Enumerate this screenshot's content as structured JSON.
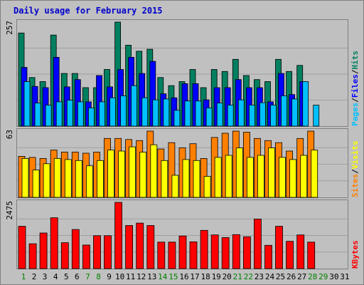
{
  "chart_data": {
    "type": "bar",
    "title": "Daily usage for February 2015",
    "colors": {
      "title": "#0000cc",
      "background": "#c0c0c0",
      "frame": "#808080",
      "grid": "#a0a0a0",
      "pages": "#00c0ff",
      "files": "#0000ff",
      "hits": "#008060",
      "sites": "#ff8000",
      "visits": "#ffff00",
      "kbytes": "#ff0000",
      "weekday_label": "#000000",
      "weekend_label": "#008000"
    },
    "x": [
      "1",
      "2",
      "3",
      "4",
      "5",
      "6",
      "7",
      "8",
      "9",
      "10",
      "11",
      "12",
      "13",
      "14",
      "15",
      "16",
      "17",
      "18",
      "19",
      "20",
      "21",
      "22",
      "23",
      "24",
      "25",
      "26",
      "27",
      "28",
      "29",
      "30",
      "31"
    ],
    "weekend_days": [
      "1",
      "7",
      "8",
      "14",
      "15",
      "21",
      "22",
      "28",
      "29"
    ],
    "panels": [
      {
        "id": "usage",
        "ymax_label": "257",
        "ylim": [
          0,
          257
        ],
        "legend": [
          "Pages",
          "Files",
          "Hits"
        ],
        "series": [
          {
            "name": "Hits",
            "color": "#008060",
            "values": [
              230,
              120,
              110,
              225,
              130,
              130,
              95,
              95,
              140,
              257,
              200,
              185,
              190,
              120,
              100,
              110,
              140,
              95,
              140,
              135,
              165,
              125,
              115,
              110,
              165,
              135,
              150,
              null,
              null,
              null,
              null
            ]
          },
          {
            "name": "Files",
            "color": "#0000ff",
            "values": [
              145,
              98,
              95,
              170,
              97,
              115,
              60,
              125,
              97,
              140,
              170,
              130,
              160,
              80,
              70,
              105,
              105,
              65,
              95,
              95,
              115,
              95,
              95,
              60,
              130,
              78,
              110,
              null,
              null,
              null,
              null
            ]
          },
          {
            "name": "Pages",
            "color": "#00c0ff",
            "values": [
              110,
              57,
              52,
              60,
              64,
              60,
              45,
              60,
              70,
              75,
              100,
              70,
              65,
              67,
              39,
              62,
              62,
              45,
              57,
              52,
              65,
              52,
              58,
              52,
              75,
              67,
              110,
              52,
              null,
              null,
              null
            ]
          }
        ]
      },
      {
        "id": "visitors",
        "ymax_label": "63",
        "ylim": [
          0,
          63
        ],
        "legend": [
          "Sites",
          "Visits"
        ],
        "series": [
          {
            "name": "Sites",
            "color": "#ff8000",
            "values": [
              39,
              38,
              37,
              45,
              43,
              43,
              42,
              43,
              56,
              56,
              55,
              54,
              63,
              46,
              52,
              47,
              51,
              37,
              57,
              61,
              63,
              62,
              56,
              54,
              52,
              44,
              56,
              63,
              null,
              null,
              null
            ]
          },
          {
            "name": "Visits",
            "color": "#ffff00",
            "values": [
              37,
              26,
              32,
              37,
              36,
              35,
              30,
              35,
              45,
              44,
              48,
              43,
              50,
              35,
              21,
              36,
              35,
              20,
              38,
              40,
              47,
              38,
              40,
              47,
              38,
              36,
              40,
              45,
              null,
              null,
              null
            ]
          }
        ]
      },
      {
        "id": "kbytes",
        "ymax_label": "2475",
        "ylim": [
          0,
          2475
        ],
        "legend": [
          "KBytes"
        ],
        "series": [
          {
            "name": "KBytes",
            "color": "#ff0000",
            "values": [
              1580,
              930,
              1330,
              1900,
              970,
              1460,
              880,
              1230,
              1230,
              2475,
              1610,
              1700,
              1610,
              990,
              990,
              1220,
              1000,
              1430,
              1260,
              1160,
              1270,
              1190,
              1850,
              870,
              1580,
              1020,
              1260,
              990,
              null,
              null,
              null
            ]
          }
        ]
      }
    ]
  }
}
